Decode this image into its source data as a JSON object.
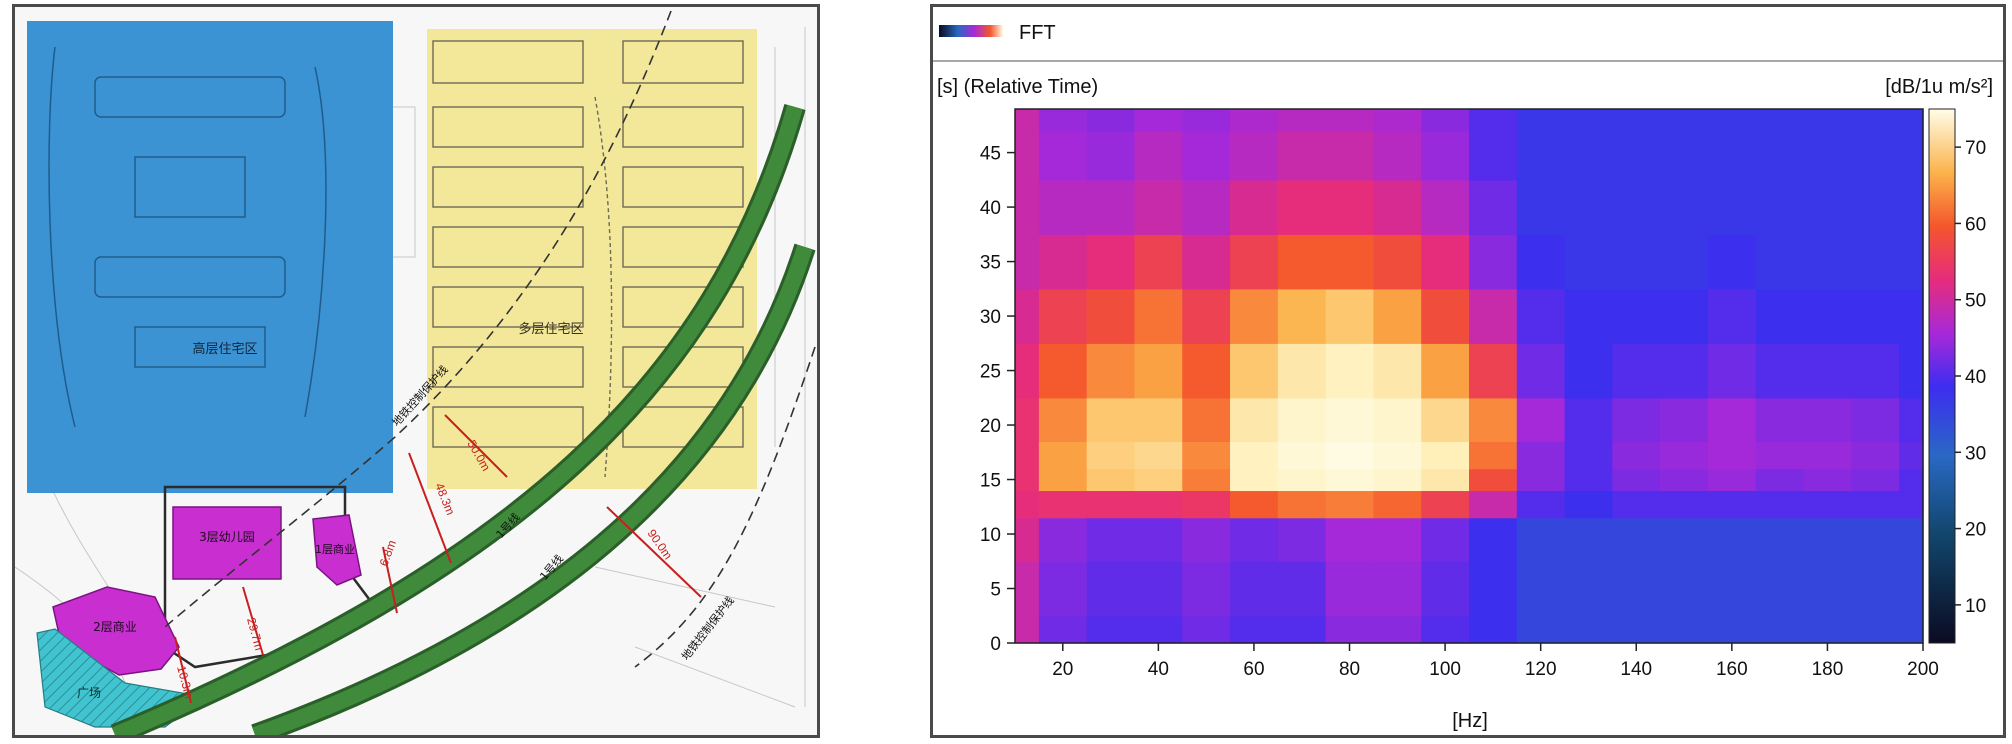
{
  "site_plan": {
    "zones": {
      "highrise": "高层住宅区",
      "multistory": "多层住宅区",
      "kindergarten": "3层幼儿园",
      "commercial_a": "1层商业",
      "commercial_b": "2层商业",
      "plaza": "广场"
    },
    "line_labels": {
      "protection_upper": "地铁控制保护线",
      "protection_lower": "地铁控制保护线",
      "metro_a": "1号线",
      "metro_b": "1号线"
    },
    "dimensions": {
      "d1": "50.0m",
      "d2": "48.3m",
      "d3": "90.0m",
      "d4": "6.8m",
      "d5": "29.7m",
      "d6": "10.3m"
    },
    "colors": {
      "highrise_fill": "#3c93d3",
      "multistory_fill": "#f3e79a",
      "purple_fill": "#c92fd0",
      "plaza_fill": "#41c4cf",
      "metro_green": "#3f8a3b",
      "dimension_red": "#c8201e"
    }
  },
  "spectrogram": {
    "legend_title": "FFT",
    "y_axis_title": "[s] (Relative Time)",
    "colorbar_unit": "[dB/1u m/s²]",
    "x_axis_title": "[Hz]",
    "x_ticks": [
      "20",
      "40",
      "60",
      "80",
      "100",
      "120",
      "140",
      "160",
      "180",
      "200"
    ],
    "y_ticks": [
      "0",
      "5",
      "10",
      "15",
      "20",
      "25",
      "30",
      "35",
      "40",
      "45"
    ],
    "colorbar_ticks": [
      "10",
      "20",
      "30",
      "40",
      "50",
      "60",
      "70"
    ],
    "colormap": [
      "#0b0b22",
      "#11456a",
      "#2a68c4",
      "#3d2df0",
      "#a729d8",
      "#e62c7c",
      "#f4562c",
      "#fbb24a",
      "#fff1bc",
      "#fffde8"
    ]
  },
  "chart_data": {
    "type": "heatmap",
    "title": "FFT",
    "xlabel": "[Hz]",
    "ylabel": "[s] (Relative Time)",
    "colorbar_label": "[dB/1u m/s²]",
    "xlim": [
      10,
      200
    ],
    "ylim": [
      0,
      49
    ],
    "clim": [
      5,
      75
    ],
    "x_ticks": [
      20,
      40,
      60,
      80,
      100,
      120,
      140,
      160,
      180,
      200
    ],
    "y_ticks": [
      0,
      5,
      10,
      15,
      20,
      25,
      30,
      35,
      40,
      45
    ],
    "colorbar_ticks": [
      10,
      20,
      30,
      40,
      50,
      60,
      70
    ],
    "x": [
      10,
      20,
      30,
      40,
      50,
      60,
      70,
      80,
      90,
      100,
      110,
      120,
      130,
      140,
      150,
      160,
      170,
      180,
      190,
      200
    ],
    "y": [
      0,
      5,
      10,
      13,
      15,
      17,
      20,
      25,
      30,
      35,
      40,
      45,
      49
    ],
    "values": [
      [
        40,
        32,
        30,
        30,
        32,
        30,
        30,
        34,
        34,
        30,
        28,
        25,
        25,
        25,
        25,
        25,
        25,
        25,
        25,
        25
      ],
      [
        40,
        33,
        31,
        31,
        33,
        31,
        31,
        35,
        35,
        31,
        28,
        25,
        25,
        25,
        25,
        25,
        25,
        25,
        25,
        25
      ],
      [
        42,
        34,
        32,
        32,
        34,
        32,
        33,
        36,
        36,
        32,
        28,
        25,
        25,
        25,
        25,
        25,
        25,
        25,
        25,
        25
      ],
      [
        44,
        45,
        45,
        45,
        46,
        52,
        54,
        55,
        53,
        48,
        40,
        30,
        28,
        30,
        30,
        30,
        30,
        30,
        30,
        30
      ],
      [
        45,
        58,
        62,
        63,
        55,
        68,
        70,
        72,
        70,
        66,
        50,
        34,
        30,
        33,
        34,
        35,
        33,
        34,
        33,
        30
      ],
      [
        45,
        58,
        63,
        64,
        56,
        68,
        72,
        74,
        72,
        67,
        54,
        34,
        30,
        34,
        35,
        36,
        35,
        35,
        34,
        31
      ],
      [
        45,
        56,
        62,
        62,
        54,
        66,
        70,
        72,
        70,
        64,
        56,
        36,
        30,
        33,
        34,
        36,
        34,
        34,
        33,
        30
      ],
      [
        44,
        52,
        56,
        58,
        52,
        62,
        66,
        68,
        66,
        58,
        48,
        32,
        28,
        30,
        30,
        32,
        30,
        30,
        30,
        28
      ],
      [
        42,
        48,
        50,
        54,
        48,
        56,
        60,
        62,
        58,
        50,
        40,
        30,
        28,
        28,
        28,
        30,
        28,
        28,
        28,
        28
      ],
      [
        40,
        42,
        44,
        48,
        42,
        48,
        52,
        52,
        50,
        44,
        34,
        28,
        27,
        27,
        27,
        28,
        27,
        27,
        27,
        27
      ],
      [
        40,
        38,
        38,
        40,
        38,
        42,
        44,
        44,
        42,
        38,
        32,
        27,
        27,
        27,
        27,
        27,
        27,
        27,
        27,
        27
      ],
      [
        40,
        36,
        35,
        38,
        36,
        38,
        40,
        40,
        38,
        35,
        30,
        27,
        27,
        27,
        27,
        27,
        27,
        27,
        27,
        27
      ],
      [
        40,
        35,
        34,
        36,
        35,
        37,
        38,
        38,
        37,
        34,
        30,
        27,
        27,
        27,
        27,
        27,
        27,
        27,
        27,
        27
      ]
    ]
  }
}
